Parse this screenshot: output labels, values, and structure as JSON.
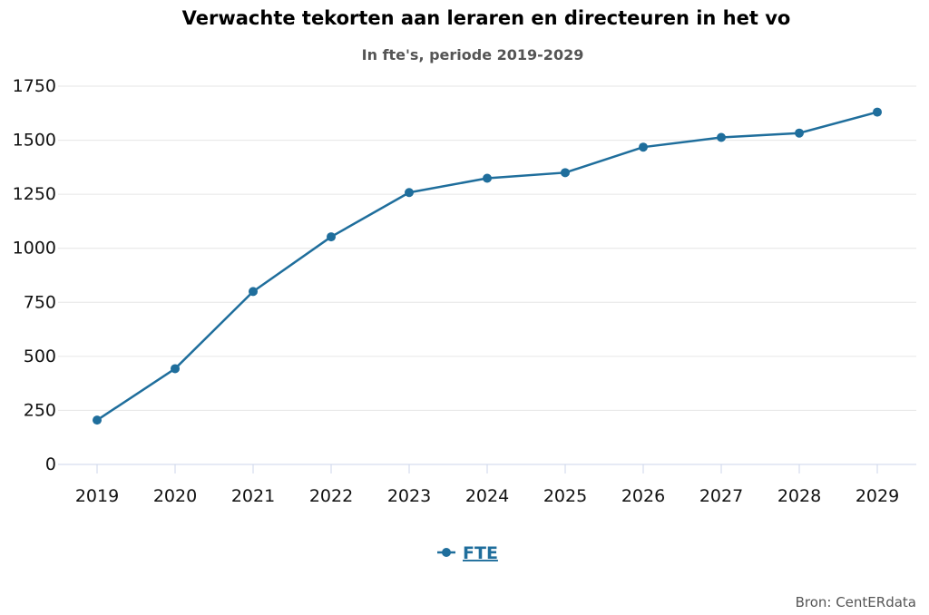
{
  "chart_data": {
    "type": "line",
    "title": "Verwachte tekorten aan leraren en directeuren in het vo",
    "subtitle": "In fte's, periode 2019-2029",
    "categories": [
      "2019",
      "2020",
      "2021",
      "2022",
      "2023",
      "2024",
      "2025",
      "2026",
      "2027",
      "2028",
      "2029"
    ],
    "series": [
      {
        "name": "FTE",
        "color": "#1f6e9c",
        "values": [
          205,
          443,
          800,
          1053,
          1258,
          1324,
          1350,
          1468,
          1513,
          1533,
          1630
        ]
      }
    ],
    "ylim": [
      0,
      1750
    ],
    "yticks": [
      0,
      250,
      500,
      750,
      1000,
      1250,
      1500,
      1750
    ],
    "grid": true,
    "legend": "bottom-center",
    "credit": "Bron: CentERdata"
  }
}
